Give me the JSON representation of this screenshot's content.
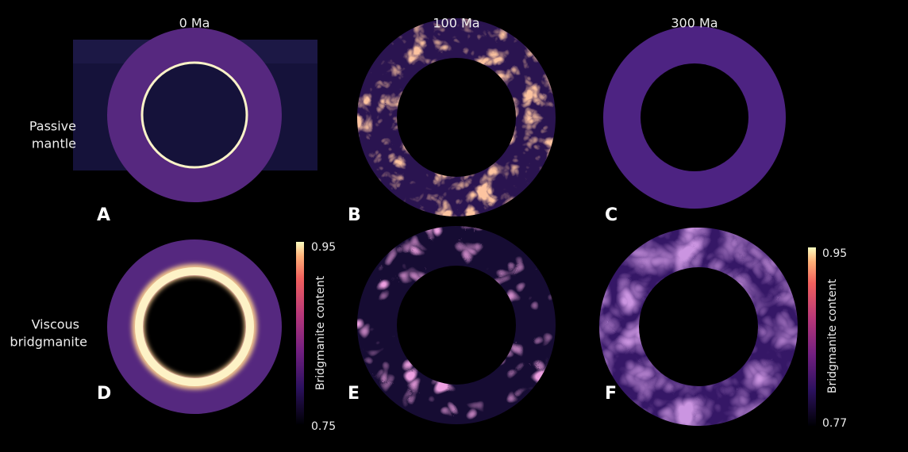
{
  "columns": [
    "0 Ma",
    "100 Ma",
    "300 Ma"
  ],
  "rows": [
    {
      "lines": [
        "Passive",
        "mantle"
      ]
    },
    {
      "lines": [
        "Viscous",
        "bridgmanite"
      ]
    }
  ],
  "panels": [
    "A",
    "B",
    "C",
    "D",
    "E",
    "F"
  ],
  "colorbars": [
    {
      "label": "Bridgmanite content",
      "top": "0.95",
      "bottom": "0.75"
    },
    {
      "label": "Bridgmanite content",
      "top": "0.95",
      "bottom": "0.77"
    }
  ]
}
